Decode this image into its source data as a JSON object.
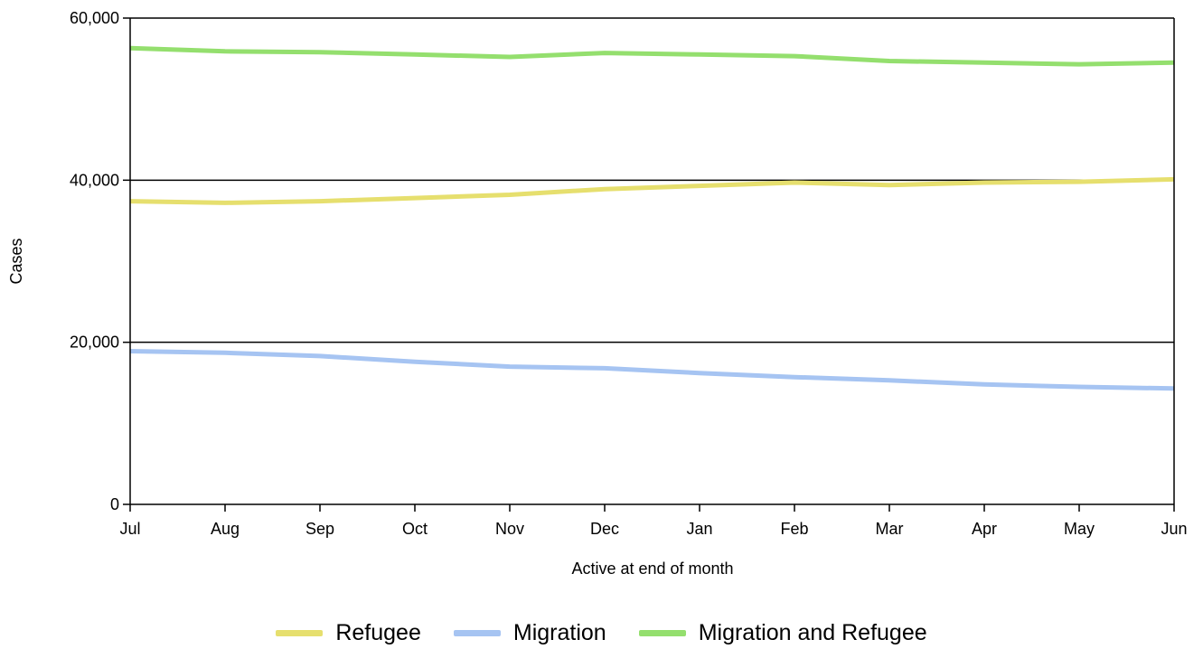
{
  "chart_data": {
    "type": "line",
    "categories": [
      "Jul",
      "Aug",
      "Sep",
      "Oct",
      "Nov",
      "Dec",
      "Jan",
      "Feb",
      "Mar",
      "Apr",
      "May",
      "Jun"
    ],
    "series": [
      {
        "name": "Refugee",
        "color": "#e6df6e",
        "values": [
          37400,
          37200,
          37400,
          37800,
          38200,
          38900,
          39300,
          39700,
          39400,
          39700,
          39800,
          40100
        ]
      },
      {
        "name": "Migration",
        "color": "#a6c4f2",
        "values": [
          18900,
          18700,
          18300,
          17600,
          17000,
          16800,
          16200,
          15700,
          15300,
          14800,
          14500,
          14300
        ]
      },
      {
        "name": "Migration and Refugee",
        "color": "#94df6e",
        "values": [
          56300,
          55900,
          55800,
          55500,
          55200,
          55700,
          55500,
          55300,
          54700,
          54500,
          54300,
          54500
        ]
      }
    ],
    "ylabel": "Cases",
    "xlabel": "Active at end of month",
    "ylim": [
      0,
      60000
    ],
    "yticks": [
      "0",
      "20,000",
      "40,000",
      "60,000"
    ],
    "ytick_values": [
      0,
      20000,
      40000,
      60000
    ],
    "grid": true,
    "legend_position": "bottom"
  }
}
